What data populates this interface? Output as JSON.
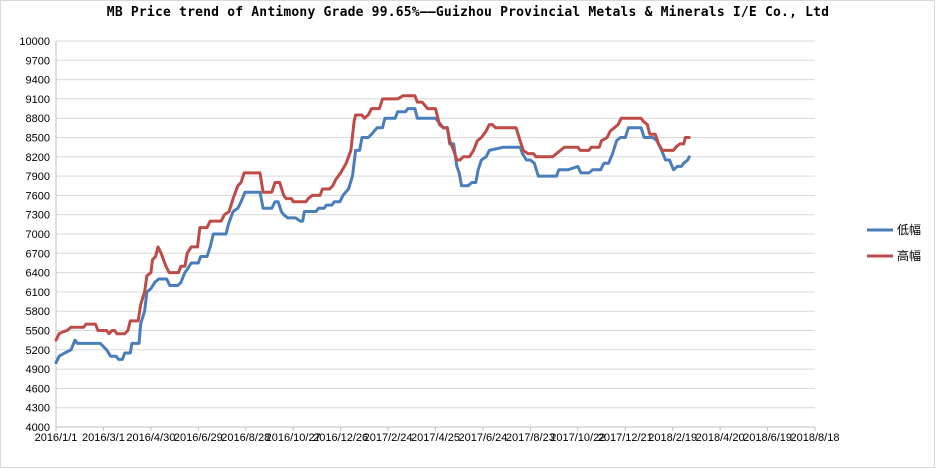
{
  "chart_data": {
    "type": "line",
    "title": "MB Price trend of Antimony Grade 99.65%——Guizhou Provincial Metals & Minerals I/E Co., Ltd",
    "xlabel": "",
    "ylabel": "",
    "ylim": [
      4000,
      10000
    ],
    "yticks": [
      4000,
      4300,
      4600,
      4900,
      5200,
      5500,
      5800,
      6100,
      6400,
      6700,
      7000,
      7300,
      7600,
      7900,
      8200,
      8500,
      8800,
      9100,
      9400,
      9700,
      10000
    ],
    "xticks": [
      "2016/1/1",
      "2016/3/1",
      "2016/4/30",
      "2016/6/29",
      "2016/8/28",
      "2016/10/27",
      "2016/12/26",
      "2017/2/24",
      "2017/4/25",
      "2017/6/24",
      "2017/8/23",
      "2017/10/22",
      "2017/12/21",
      "2018/2/19",
      "2018/4/20",
      "2018/6/19",
      "2018/8/18"
    ],
    "grid": true,
    "legend_position": "right",
    "series": [
      {
        "name": "低幅",
        "color": "#4a7ebb",
        "points": [
          [
            "2016-01-01",
            5000
          ],
          [
            "2016-01-05",
            5100
          ],
          [
            "2016-01-12",
            5150
          ],
          [
            "2016-01-20",
            5200
          ],
          [
            "2016-01-25",
            5350
          ],
          [
            "2016-01-28",
            5300
          ],
          [
            "2016-02-26",
            5300
          ],
          [
            "2016-03-05",
            5200
          ],
          [
            "2016-03-10",
            5100
          ],
          [
            "2016-03-17",
            5100
          ],
          [
            "2016-03-20",
            5050
          ],
          [
            "2016-03-25",
            5050
          ],
          [
            "2016-03-28",
            5150
          ],
          [
            "2016-04-04",
            5150
          ],
          [
            "2016-04-06",
            5300
          ],
          [
            "2016-04-15",
            5300
          ],
          [
            "2016-04-17",
            5600
          ],
          [
            "2016-04-22",
            5800
          ],
          [
            "2016-04-25",
            6100
          ],
          [
            "2016-04-30",
            6150
          ],
          [
            "2016-05-05",
            6250
          ],
          [
            "2016-05-10",
            6300
          ],
          [
            "2016-05-20",
            6300
          ],
          [
            "2016-05-24",
            6200
          ],
          [
            "2016-06-03",
            6200
          ],
          [
            "2016-06-07",
            6250
          ],
          [
            "2016-06-12",
            6400
          ],
          [
            "2016-06-15",
            6450
          ],
          [
            "2016-06-20",
            6550
          ],
          [
            "2016-06-29",
            6550
          ],
          [
            "2016-07-02",
            6650
          ],
          [
            "2016-07-10",
            6650
          ],
          [
            "2016-07-14",
            6800
          ],
          [
            "2016-07-18",
            7000
          ],
          [
            "2016-07-30",
            7000
          ],
          [
            "2016-08-03",
            7000
          ],
          [
            "2016-08-06",
            7150
          ],
          [
            "2016-08-12",
            7350
          ],
          [
            "2016-08-18",
            7400
          ],
          [
            "2016-08-22",
            7500
          ],
          [
            "2016-08-27",
            7650
          ],
          [
            "2016-09-15",
            7650
          ],
          [
            "2016-09-19",
            7400
          ],
          [
            "2016-09-22",
            7400
          ],
          [
            "2016-09-30",
            7400
          ],
          [
            "2016-10-04",
            7500
          ],
          [
            "2016-10-08",
            7500
          ],
          [
            "2016-10-12",
            7350
          ],
          [
            "2016-10-15",
            7300
          ],
          [
            "2016-10-20",
            7250
          ],
          [
            "2016-10-30",
            7250
          ],
          [
            "2016-11-05",
            7200
          ],
          [
            "2016-11-08",
            7200
          ],
          [
            "2016-11-10",
            7350
          ],
          [
            "2016-11-25",
            7350
          ],
          [
            "2016-11-28",
            7400
          ],
          [
            "2016-12-05",
            7400
          ],
          [
            "2016-12-08",
            7450
          ],
          [
            "2016-12-15",
            7450
          ],
          [
            "2016-12-18",
            7500
          ],
          [
            "2016-12-25",
            7500
          ],
          [
            "2016-12-29",
            7600
          ],
          [
            "2017-01-05",
            7700
          ],
          [
            "2017-01-10",
            7900
          ],
          [
            "2017-01-14",
            8300
          ],
          [
            "2017-01-19",
            8300
          ],
          [
            "2017-01-22",
            8500
          ],
          [
            "2017-01-30",
            8500
          ],
          [
            "2017-02-03",
            8550
          ],
          [
            "2017-02-10",
            8650
          ],
          [
            "2017-02-17",
            8650
          ],
          [
            "2017-02-20",
            8800
          ],
          [
            "2017-03-05",
            8800
          ],
          [
            "2017-03-08",
            8900
          ],
          [
            "2017-03-18",
            8900
          ],
          [
            "2017-03-21",
            8950
          ],
          [
            "2017-03-30",
            8950
          ],
          [
            "2017-04-02",
            8800
          ],
          [
            "2017-04-25",
            8800
          ],
          [
            "2017-05-05",
            8650
          ],
          [
            "2017-05-10",
            8650
          ],
          [
            "2017-05-13",
            8400
          ],
          [
            "2017-05-18",
            8400
          ],
          [
            "2017-05-22",
            8050
          ],
          [
            "2017-05-25",
            7950
          ],
          [
            "2017-05-28",
            7750
          ],
          [
            "2017-06-05",
            7750
          ],
          [
            "2017-06-10",
            7800
          ],
          [
            "2017-06-15",
            7800
          ],
          [
            "2017-06-18",
            8000
          ],
          [
            "2017-06-22",
            8150
          ],
          [
            "2017-06-28",
            8200
          ],
          [
            "2017-07-02",
            8300
          ],
          [
            "2017-07-20",
            8350
          ],
          [
            "2017-08-10",
            8350
          ],
          [
            "2017-08-13",
            8250
          ],
          [
            "2017-08-18",
            8150
          ],
          [
            "2017-08-23",
            8150
          ],
          [
            "2017-08-28",
            8100
          ],
          [
            "2017-09-02",
            7900
          ],
          [
            "2017-09-25",
            7900
          ],
          [
            "2017-09-28",
            8000
          ],
          [
            "2017-10-10",
            8000
          ],
          [
            "2017-10-22",
            8050
          ],
          [
            "2017-10-26",
            7950
          ],
          [
            "2017-11-05",
            7950
          ],
          [
            "2017-11-10",
            8000
          ],
          [
            "2017-11-20",
            8000
          ],
          [
            "2017-11-24",
            8100
          ],
          [
            "2017-11-30",
            8100
          ],
          [
            "2017-12-05",
            8250
          ],
          [
            "2017-12-10",
            8450
          ],
          [
            "2017-12-15",
            8500
          ],
          [
            "2017-12-21",
            8500
          ],
          [
            "2017-12-25",
            8650
          ],
          [
            "2018-01-10",
            8650
          ],
          [
            "2018-01-14",
            8500
          ],
          [
            "2018-01-25",
            8500
          ],
          [
            "2018-01-30",
            8450
          ],
          [
            "2018-02-05",
            8300
          ],
          [
            "2018-02-10",
            8150
          ],
          [
            "2018-02-15",
            8150
          ],
          [
            "2018-02-20",
            8000
          ],
          [
            "2018-02-25",
            8050
          ],
          [
            "2018-03-02",
            8050
          ],
          [
            "2018-03-05",
            8100
          ],
          [
            "2018-03-10",
            8150
          ],
          [
            "2018-03-12",
            8200
          ]
        ]
      },
      {
        "name": "高幅",
        "color": "#be4b48",
        "points": [
          [
            "2016-01-01",
            5350
          ],
          [
            "2016-01-05",
            5450
          ],
          [
            "2016-01-10",
            5480
          ],
          [
            "2016-01-15",
            5500
          ],
          [
            "2016-01-20",
            5550
          ],
          [
            "2016-02-05",
            5550
          ],
          [
            "2016-02-08",
            5600
          ],
          [
            "2016-02-20",
            5600
          ],
          [
            "2016-02-23",
            5500
          ],
          [
            "2016-03-05",
            5500
          ],
          [
            "2016-03-08",
            5450
          ],
          [
            "2016-03-12",
            5500
          ],
          [
            "2016-03-15",
            5500
          ],
          [
            "2016-03-18",
            5450
          ],
          [
            "2016-03-28",
            5450
          ],
          [
            "2016-04-01",
            5500
          ],
          [
            "2016-04-04",
            5650
          ],
          [
            "2016-04-14",
            5650
          ],
          [
            "2016-04-17",
            5900
          ],
          [
            "2016-04-22",
            6100
          ],
          [
            "2016-04-25",
            6350
          ],
          [
            "2016-04-30",
            6400
          ],
          [
            "2016-05-02",
            6600
          ],
          [
            "2016-05-06",
            6650
          ],
          [
            "2016-05-09",
            6800
          ],
          [
            "2016-05-13",
            6700
          ],
          [
            "2016-05-16",
            6600
          ],
          [
            "2016-05-19",
            6500
          ],
          [
            "2016-05-23",
            6400
          ],
          [
            "2016-06-04",
            6400
          ],
          [
            "2016-06-07",
            6500
          ],
          [
            "2016-06-12",
            6500
          ],
          [
            "2016-06-15",
            6700
          ],
          [
            "2016-06-20",
            6800
          ],
          [
            "2016-06-28",
            6800
          ],
          [
            "2016-07-01",
            7100
          ],
          [
            "2016-07-10",
            7100
          ],
          [
            "2016-07-14",
            7200
          ],
          [
            "2016-07-28",
            7200
          ],
          [
            "2016-08-01",
            7300
          ],
          [
            "2016-08-07",
            7350
          ],
          [
            "2016-08-12",
            7550
          ],
          [
            "2016-08-18",
            7750
          ],
          [
            "2016-08-22",
            7800
          ],
          [
            "2016-08-26",
            7950
          ],
          [
            "2016-09-15",
            7950
          ],
          [
            "2016-09-19",
            7650
          ],
          [
            "2016-09-30",
            7650
          ],
          [
            "2016-10-04",
            7800
          ],
          [
            "2016-10-10",
            7800
          ],
          [
            "2016-10-15",
            7600
          ],
          [
            "2016-10-18",
            7550
          ],
          [
            "2016-10-25",
            7550
          ],
          [
            "2016-10-27",
            7500
          ],
          [
            "2016-11-12",
            7500
          ],
          [
            "2016-11-15",
            7550
          ],
          [
            "2016-11-20",
            7600
          ],
          [
            "2016-11-30",
            7600
          ],
          [
            "2016-12-03",
            7700
          ],
          [
            "2016-12-12",
            7700
          ],
          [
            "2016-12-16",
            7750
          ],
          [
            "2016-12-20",
            7850
          ],
          [
            "2016-12-26",
            7950
          ],
          [
            "2017-01-02",
            8100
          ],
          [
            "2017-01-08",
            8300
          ],
          [
            "2017-01-12",
            8750
          ],
          [
            "2017-01-14",
            8850
          ],
          [
            "2017-01-22",
            8850
          ],
          [
            "2017-01-25",
            8800
          ],
          [
            "2017-01-30",
            8850
          ],
          [
            "2017-02-03",
            8950
          ],
          [
            "2017-02-13",
            8950
          ],
          [
            "2017-02-17",
            9100
          ],
          [
            "2017-03-05",
            9100
          ],
          [
            "2017-03-08",
            9100
          ],
          [
            "2017-03-15",
            9150
          ],
          [
            "2017-03-30",
            9150
          ],
          [
            "2017-04-02",
            9050
          ],
          [
            "2017-04-08",
            9050
          ],
          [
            "2017-04-15",
            8950
          ],
          [
            "2017-04-25",
            8950
          ],
          [
            "2017-04-30",
            8700
          ],
          [
            "2017-05-05",
            8650
          ],
          [
            "2017-05-10",
            8650
          ],
          [
            "2017-05-13",
            8450
          ],
          [
            "2017-05-18",
            8300
          ],
          [
            "2017-05-22",
            8150
          ],
          [
            "2017-05-26",
            8150
          ],
          [
            "2017-05-30",
            8200
          ],
          [
            "2017-06-07",
            8200
          ],
          [
            "2017-06-12",
            8300
          ],
          [
            "2017-06-17",
            8450
          ],
          [
            "2017-06-22",
            8500
          ],
          [
            "2017-06-28",
            8600
          ],
          [
            "2017-07-02",
            8700
          ],
          [
            "2017-07-06",
            8700
          ],
          [
            "2017-07-10",
            8650
          ],
          [
            "2017-08-05",
            8650
          ],
          [
            "2017-08-10",
            8450
          ],
          [
            "2017-08-14",
            8300
          ],
          [
            "2017-08-20",
            8250
          ],
          [
            "2017-08-27",
            8250
          ],
          [
            "2017-08-30",
            8200
          ],
          [
            "2017-09-20",
            8200
          ],
          [
            "2017-09-25",
            8250
          ],
          [
            "2017-10-05",
            8350
          ],
          [
            "2017-10-22",
            8350
          ],
          [
            "2017-10-25",
            8300
          ],
          [
            "2017-11-05",
            8300
          ],
          [
            "2017-11-08",
            8350
          ],
          [
            "2017-11-18",
            8350
          ],
          [
            "2017-11-21",
            8450
          ],
          [
            "2017-11-28",
            8500
          ],
          [
            "2017-12-02",
            8600
          ],
          [
            "2017-12-07",
            8650
          ],
          [
            "2017-12-12",
            8700
          ],
          [
            "2017-12-16",
            8800
          ],
          [
            "2018-01-10",
            8800
          ],
          [
            "2018-01-13",
            8750
          ],
          [
            "2018-01-18",
            8700
          ],
          [
            "2018-01-21",
            8550
          ],
          [
            "2018-01-28",
            8550
          ],
          [
            "2018-02-01",
            8400
          ],
          [
            "2018-02-06",
            8300
          ],
          [
            "2018-02-20",
            8300
          ],
          [
            "2018-02-23",
            8350
          ],
          [
            "2018-02-28",
            8400
          ],
          [
            "2018-03-05",
            8400
          ],
          [
            "2018-03-07",
            8500
          ],
          [
            "2018-03-12",
            8500
          ]
        ]
      }
    ]
  }
}
